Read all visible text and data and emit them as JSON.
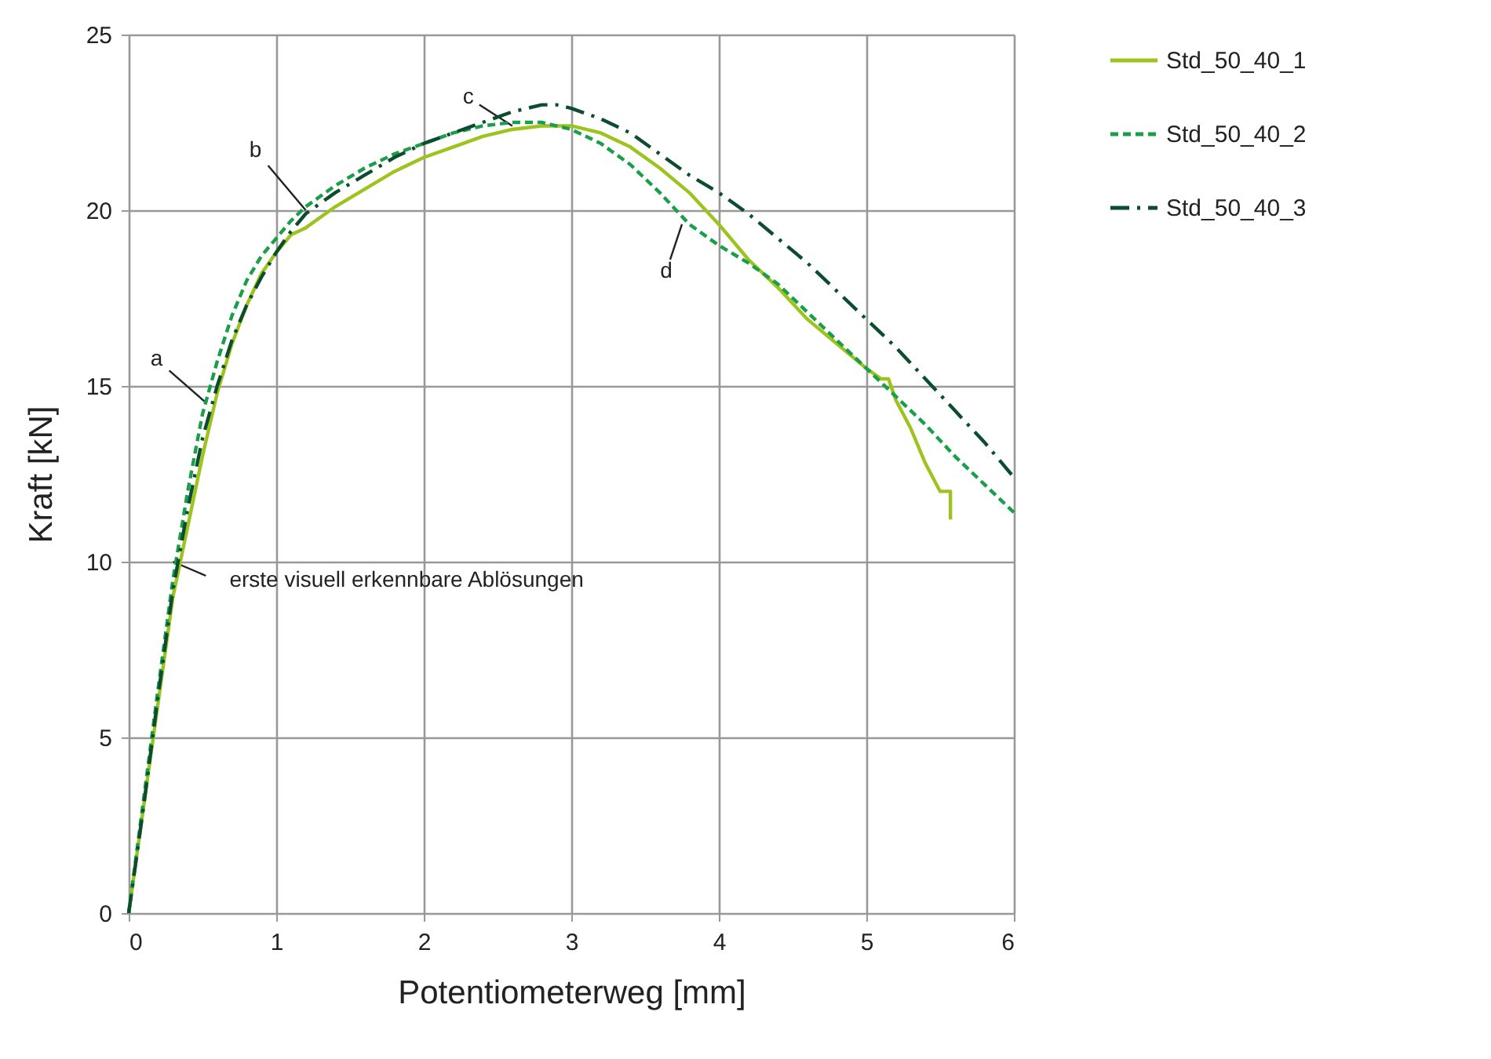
{
  "chart_data": {
    "type": "line",
    "xlabel": "Potentiometerweg [mm]",
    "ylabel": "Kraft [kN]",
    "xlim": [
      0,
      6
    ],
    "ylim": [
      0,
      25
    ],
    "xticks": [
      0,
      1,
      2,
      3,
      4,
      5,
      6
    ],
    "yticks": [
      0,
      5,
      10,
      15,
      20,
      25
    ],
    "grid": true,
    "legend": "top right",
    "series": [
      {
        "name": "Std_50_40_1",
        "color": "#9cc31e",
        "line_style": "solid",
        "x": [
          0,
          0.1,
          0.2,
          0.3,
          0.4,
          0.5,
          0.6,
          0.7,
          0.8,
          0.9,
          1.0,
          1.1,
          1.2,
          1.4,
          1.6,
          1.8,
          2.0,
          2.2,
          2.4,
          2.6,
          2.8,
          3.0,
          3.2,
          3.4,
          3.6,
          3.8,
          4.0,
          4.2,
          4.4,
          4.6,
          4.8,
          5.0,
          5.1,
          5.15,
          5.2,
          5.3,
          5.4,
          5.5,
          5.57,
          5.57
        ],
        "values": [
          0,
          3,
          6,
          9,
          11,
          13,
          14.8,
          16.2,
          17.3,
          18.2,
          18.8,
          19.3,
          19.5,
          20.1,
          20.6,
          21.1,
          21.5,
          21.8,
          22.1,
          22.3,
          22.4,
          22.4,
          22.2,
          21.8,
          21.2,
          20.5,
          19.6,
          18.6,
          17.8,
          16.9,
          16.2,
          15.5,
          15.2,
          15.2,
          14.6,
          13.8,
          12.8,
          12.0,
          12.0,
          11.2
        ]
      },
      {
        "name": "Std_50_40_2",
        "color": "#1a9e4a",
        "line_style": "dashed",
        "x": [
          0,
          0.1,
          0.2,
          0.3,
          0.4,
          0.5,
          0.6,
          0.7,
          0.8,
          0.9,
          1.0,
          1.1,
          1.2,
          1.4,
          1.6,
          1.8,
          2.0,
          2.2,
          2.4,
          2.6,
          2.8,
          3.0,
          3.2,
          3.4,
          3.6,
          3.8,
          4.0,
          4.2,
          4.4,
          4.6,
          4.8,
          5.0,
          5.2,
          5.4,
          5.6,
          5.8,
          6.0
        ],
        "values": [
          0,
          3.2,
          6.4,
          9.5,
          12,
          14.2,
          15.7,
          17,
          18,
          18.7,
          19.2,
          19.7,
          20.1,
          20.7,
          21.2,
          21.6,
          21.9,
          22.2,
          22.4,
          22.5,
          22.5,
          22.3,
          21.9,
          21.3,
          20.5,
          19.6,
          19.0,
          18.5,
          17.9,
          17.1,
          16.3,
          15.5,
          14.7,
          13.9,
          13.0,
          12.2,
          11.4
        ]
      },
      {
        "name": "Std_50_40_3",
        "color": "#0b4d2e",
        "line_style": "dashdot",
        "x": [
          0,
          0.1,
          0.2,
          0.3,
          0.4,
          0.5,
          0.6,
          0.7,
          0.8,
          0.9,
          1.0,
          1.1,
          1.2,
          1.4,
          1.6,
          1.8,
          2.0,
          2.2,
          2.4,
          2.6,
          2.8,
          2.9,
          3.0,
          3.2,
          3.4,
          3.6,
          3.8,
          4.0,
          4.2,
          4.4,
          4.6,
          4.8,
          5.0,
          5.2,
          5.4,
          5.6,
          5.8,
          6.0
        ],
        "values": [
          0,
          3,
          6.2,
          9.2,
          11.5,
          13.5,
          15,
          16.3,
          17.3,
          18.1,
          18.8,
          19.4,
          19.9,
          20.5,
          21,
          21.5,
          21.9,
          22.2,
          22.5,
          22.8,
          23.0,
          23.0,
          22.9,
          22.6,
          22.2,
          21.6,
          21.0,
          20.5,
          19.9,
          19.2,
          18.5,
          17.7,
          16.9,
          16.1,
          15.2,
          14.3,
          13.4,
          12.4
        ]
      }
    ],
    "annotations": [
      {
        "text": "a",
        "x": 0.53,
        "y": 14.5
      },
      {
        "text": "b",
        "x": 1.2,
        "y": 20
      },
      {
        "text": "c",
        "x": 2.6,
        "y": 22.4
      },
      {
        "text": "d",
        "x": 3.75,
        "y": 19.6
      },
      {
        "text": "erste visuell erkennbare Ablösungen",
        "x": 0.3,
        "y": 10
      }
    ]
  }
}
